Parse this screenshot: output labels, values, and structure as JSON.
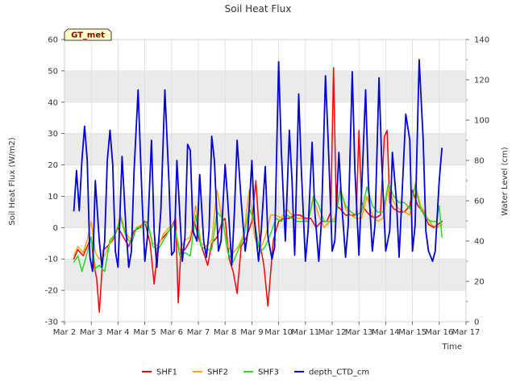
{
  "chart_data": {
    "type": "line",
    "title": "Soil Heat Flux",
    "badge": "GT_met",
    "xlabel": "Time",
    "ylabel": "Soil Heat Flux (W/m2)",
    "y2label": "Water Level (cm)",
    "xlim": [
      2,
      17
    ],
    "ylim": [
      -30,
      60
    ],
    "y2lim": [
      0,
      140
    ],
    "x_ticks": [
      2,
      3,
      4,
      5,
      6,
      7,
      8,
      9,
      10,
      11,
      12,
      13,
      14,
      15,
      16,
      17
    ],
    "x_tick_labels": [
      "Mar 2",
      "Mar 3",
      "Mar 4",
      "Mar 5",
      "Mar 6",
      "Mar 7",
      "Mar 8",
      "Mar 9",
      "Mar 10",
      "Mar 11",
      "Mar 12",
      "Mar 13",
      "Mar 14",
      "Mar 15",
      "Mar 16",
      "Mar 17"
    ],
    "y_ticks": [
      -30,
      -20,
      -10,
      0,
      10,
      20,
      30,
      40,
      50,
      60
    ],
    "y_tick_labels": [
      "-30",
      "-20",
      "-10",
      "0",
      "10",
      "20",
      "30",
      "40",
      "50",
      "60"
    ],
    "y2_ticks": [
      0,
      20,
      40,
      60,
      80,
      100,
      120,
      140
    ],
    "y2_tick_labels": [
      "0",
      "20",
      "40",
      "60",
      "80",
      "100",
      "120",
      "140"
    ],
    "colors": {
      "SHF1": "#ff0000",
      "SHF2": "#ffa500",
      "SHF3": "#22dd22",
      "depth_CTD_cm": "#0000dd",
      "band": "#ebebeb",
      "grid": "#dcdcdc",
      "badge_bg": "#ffffcc"
    },
    "series": [
      {
        "name": "SHF1",
        "axis": "left",
        "x": [
          2.35,
          2.5,
          2.7,
          2.85,
          3.0,
          3.1,
          3.2,
          3.3,
          3.45,
          3.6,
          3.8,
          4.0,
          4.2,
          4.4,
          4.6,
          4.8,
          5.0,
          5.2,
          5.35,
          5.5,
          5.7,
          5.9,
          6.0,
          6.15,
          6.25,
          6.35,
          6.5,
          6.7,
          6.85,
          7.0,
          7.2,
          7.35,
          7.5,
          7.7,
          7.9,
          8.0,
          8.15,
          8.3,
          8.45,
          8.6,
          8.8,
          9.0,
          9.15,
          9.3,
          9.45,
          9.6,
          9.8,
          10.0,
          10.2,
          10.4,
          10.6,
          10.8,
          11.0,
          11.2,
          11.4,
          11.6,
          11.8,
          11.95,
          12.05,
          12.15,
          12.3,
          12.5,
          12.7,
          12.9,
          13.0,
          13.1,
          13.2,
          13.4,
          13.6,
          13.8,
          13.95,
          14.05,
          14.15,
          14.3,
          14.5,
          14.7,
          14.9,
          15.0,
          15.2,
          15.4,
          15.6,
          15.8,
          15.95,
          16.1
        ],
        "values": [
          -10,
          -7,
          -9,
          -6,
          -3,
          -12,
          -16,
          -27,
          -7,
          -6,
          -4,
          0,
          -3,
          -6,
          -1,
          0,
          2,
          -5,
          -18,
          -5,
          -3,
          -1,
          0,
          3,
          -24,
          -7,
          -7,
          -4,
          2,
          -3,
          -8,
          -12,
          -5,
          -3,
          2,
          3,
          -10,
          -14,
          -21,
          -6,
          -3,
          2,
          15,
          -5,
          -12,
          -25,
          -4,
          2,
          3,
          3,
          4,
          4,
          3,
          3,
          0,
          2,
          2,
          5,
          51,
          7,
          6,
          4,
          4,
          4,
          31,
          8,
          6,
          4,
          3,
          4,
          29,
          31,
          8,
          6,
          5,
          5,
          7,
          12,
          7,
          5,
          1,
          0,
          1,
          2
        ]
      },
      {
        "name": "SHF2",
        "axis": "left",
        "x": [
          2.35,
          2.5,
          2.7,
          2.85,
          3.0,
          3.15,
          3.3,
          3.5,
          3.7,
          3.9,
          4.1,
          4.3,
          4.5,
          4.7,
          4.9,
          5.1,
          5.3,
          5.5,
          5.7,
          5.9,
          6.1,
          6.3,
          6.5,
          6.7,
          6.9,
          7.1,
          7.3,
          7.5,
          7.7,
          7.9,
          8.1,
          8.3,
          8.5,
          8.7,
          8.9,
          9.1,
          9.3,
          9.5,
          9.7,
          9.9,
          10.1,
          10.3,
          10.5,
          10.7,
          10.9,
          11.1,
          11.3,
          11.5,
          11.7,
          11.9,
          12.1,
          12.3,
          12.5,
          12.7,
          12.9,
          13.1,
          13.3,
          13.5,
          13.7,
          13.9,
          14.1,
          14.3,
          14.5,
          14.7,
          14.9,
          15.1,
          15.3,
          15.5,
          15.7,
          15.9,
          16.1
        ],
        "values": [
          -9,
          -6,
          -8,
          -4,
          2,
          -8,
          -10,
          -9,
          -5,
          -2,
          4,
          -2,
          -4,
          0,
          1,
          2,
          -5,
          -6,
          -2,
          0,
          1,
          -7,
          -4,
          -3,
          7,
          -5,
          -6,
          -4,
          12,
          2,
          -6,
          -8,
          -6,
          -2,
          12,
          -3,
          -7,
          -3,
          4,
          4,
          3,
          6,
          4,
          3,
          3,
          2,
          9,
          4,
          0,
          2,
          3,
          13,
          6,
          4,
          3,
          3,
          10,
          4,
          2,
          3,
          13,
          8,
          6,
          5,
          4,
          14,
          7,
          4,
          1,
          0,
          1
        ]
      },
      {
        "name": "SHF3",
        "axis": "left",
        "x": [
          2.35,
          2.5,
          2.65,
          2.85,
          3.0,
          3.15,
          3.3,
          3.5,
          3.7,
          3.9,
          4.1,
          4.3,
          4.5,
          4.7,
          4.9,
          5.1,
          5.3,
          5.5,
          5.7,
          5.9,
          6.1,
          6.3,
          6.5,
          6.7,
          6.9,
          7.1,
          7.3,
          7.5,
          7.7,
          7.9,
          8.1,
          8.3,
          8.5,
          8.7,
          8.9,
          9.1,
          9.3,
          9.5,
          9.7,
          9.9,
          10.1,
          10.3,
          10.5,
          10.7,
          10.9,
          11.1,
          11.3,
          11.5,
          11.7,
          11.9,
          12.1,
          12.3,
          12.5,
          12.7,
          12.9,
          13.1,
          13.3,
          13.5,
          13.7,
          13.9,
          14.1,
          14.3,
          14.5,
          14.7,
          14.9,
          15.1,
          15.3,
          15.5,
          15.7,
          15.9,
          16.0,
          16.1
        ],
        "values": [
          -11,
          -9,
          -14,
          -8,
          -3,
          -13,
          -12,
          -14,
          -4,
          -2,
          3,
          -3,
          -5,
          0,
          0,
          2,
          -6,
          -7,
          -4,
          -1,
          1,
          -9,
          -8,
          -9,
          4,
          -6,
          -7,
          -7,
          5,
          3,
          -8,
          -11,
          -7,
          -3,
          6,
          2,
          -8,
          -6,
          -2,
          3,
          2,
          4,
          3,
          2,
          2,
          2,
          10,
          7,
          2,
          2,
          2,
          12,
          7,
          5,
          4,
          5,
          13,
          7,
          5,
          5,
          14,
          10,
          8,
          8,
          6,
          13,
          6,
          3,
          2,
          2,
          7,
          -3
        ]
      },
      {
        "name": "depth_CTD_cm",
        "axis": "right",
        "x": [
          2.35,
          2.45,
          2.55,
          2.65,
          2.75,
          2.85,
          2.95,
          3.05,
          3.15,
          3.3,
          3.4,
          3.5,
          3.6,
          3.7,
          3.8,
          3.9,
          4.0,
          4.15,
          4.3,
          4.4,
          4.5,
          4.6,
          4.75,
          4.9,
          5.0,
          5.1,
          5.25,
          5.35,
          5.45,
          5.6,
          5.75,
          5.9,
          6.0,
          6.1,
          6.2,
          6.3,
          6.4,
          6.5,
          6.6,
          6.7,
          6.8,
          6.95,
          7.05,
          7.2,
          7.3,
          7.4,
          7.5,
          7.6,
          7.75,
          7.85,
          8.0,
          8.1,
          8.25,
          8.35,
          8.45,
          8.6,
          8.75,
          8.85,
          9.0,
          9.1,
          9.25,
          9.35,
          9.5,
          9.6,
          9.75,
          9.85,
          10.0,
          10.1,
          10.25,
          10.4,
          10.5,
          10.6,
          10.75,
          10.85,
          11.0,
          11.1,
          11.25,
          11.35,
          11.5,
          11.6,
          11.75,
          11.85,
          12.0,
          12.1,
          12.25,
          12.35,
          12.5,
          12.6,
          12.75,
          12.85,
          13.0,
          13.1,
          13.25,
          13.35,
          13.5,
          13.6,
          13.75,
          13.85,
          14.0,
          14.15,
          14.25,
          14.4,
          14.5,
          14.6,
          14.75,
          14.9,
          15.0,
          15.1,
          15.25,
          15.4,
          15.5,
          15.6,
          15.75,
          15.85,
          16.0,
          16.1
        ],
        "values": [
          55,
          75,
          55,
          80,
          97,
          80,
          32,
          25,
          70,
          40,
          27,
          40,
          80,
          95,
          78,
          35,
          27,
          82,
          45,
          27,
          35,
          75,
          115,
          60,
          30,
          42,
          90,
          45,
          27,
          55,
          115,
          70,
          33,
          35,
          80,
          55,
          30,
          42,
          88,
          85,
          45,
          40,
          73,
          40,
          32,
          45,
          92,
          80,
          35,
          40,
          78,
          60,
          28,
          55,
          90,
          60,
          35,
          45,
          80,
          50,
          30,
          45,
          77,
          42,
          31,
          37,
          129,
          85,
          40,
          95,
          70,
          33,
          113,
          75,
          30,
          45,
          89,
          55,
          30,
          50,
          122,
          90,
          35,
          40,
          84,
          60,
          32,
          48,
          124,
          75,
          33,
          65,
          115,
          70,
          35,
          48,
          121,
          80,
          35,
          45,
          84,
          60,
          32,
          60,
          103,
          90,
          35,
          48,
          130,
          90,
          45,
          35,
          30,
          35,
          70,
          86
        ]
      }
    ],
    "legend": [
      "SHF1",
      "SHF2",
      "SHF3",
      "depth_CTD_cm"
    ]
  }
}
